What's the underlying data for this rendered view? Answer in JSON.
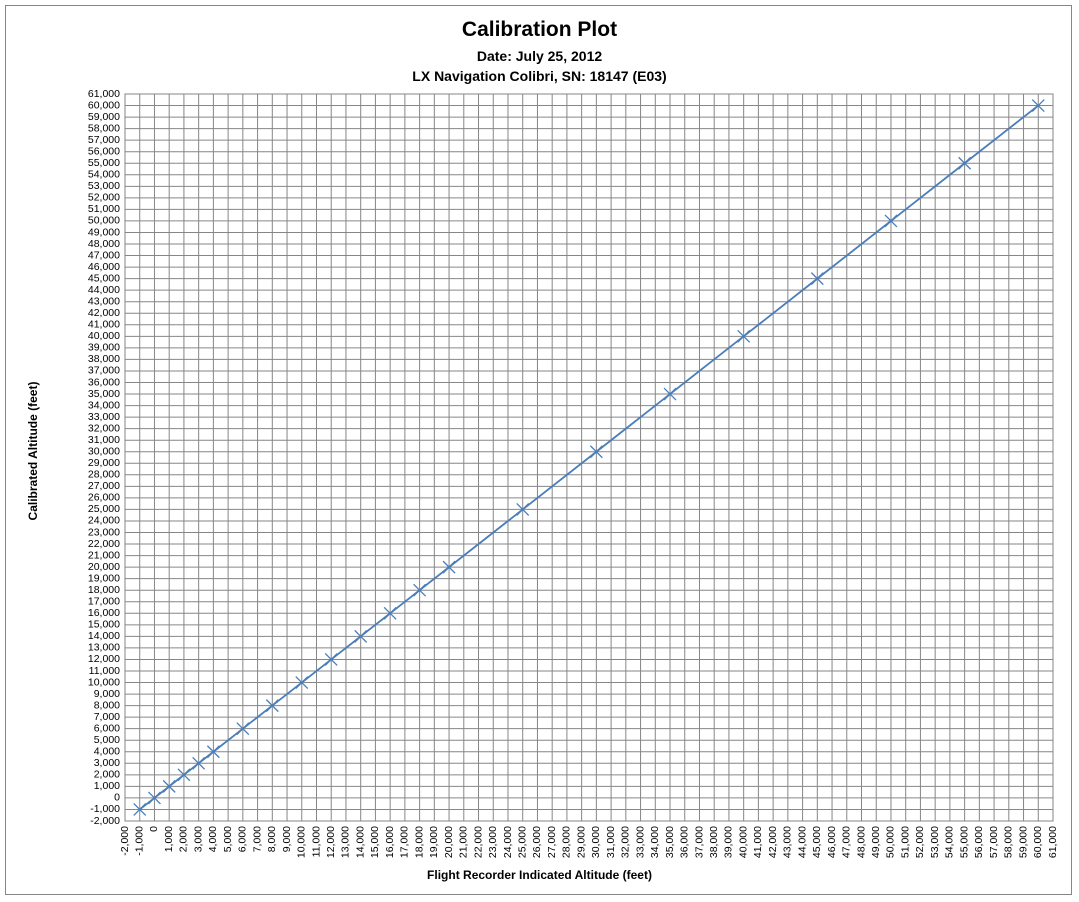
{
  "chart_data": {
    "type": "line",
    "title": "Calibration Plot",
    "subtitle": [
      "Date:  July 25, 2012",
      "LX Navigation Colibri, SN: 18147 (E03)"
    ],
    "xlabel": "Flight Recorder Indicated Altitude (feet)",
    "ylabel": "Calibrated Altitude (feet)",
    "xlim": [
      -2000,
      61000
    ],
    "ylim": [
      -2000,
      61000
    ],
    "xtick_step": 1000,
    "ytick_step": 1000,
    "grid": true,
    "legend": "none",
    "series": [
      {
        "color": "#4a7ebb",
        "marker": "x",
        "x": [
          -1000,
          0,
          1000,
          2000,
          3000,
          4000,
          6000,
          8000,
          10000,
          12000,
          14000,
          16000,
          18000,
          20000,
          25000,
          30000,
          35000,
          40000,
          45000,
          50000,
          55000,
          60000
        ],
        "y": [
          -1000,
          0,
          1000,
          2000,
          3000,
          4000,
          6000,
          8000,
          10000,
          12000,
          14000,
          16000,
          18000,
          20000,
          25000,
          30000,
          35000,
          40000,
          45000,
          50000,
          55000,
          60000
        ]
      }
    ]
  },
  "colors": {
    "grid": "#868686",
    "line": "#4a7ebb",
    "frame": "#868686"
  }
}
